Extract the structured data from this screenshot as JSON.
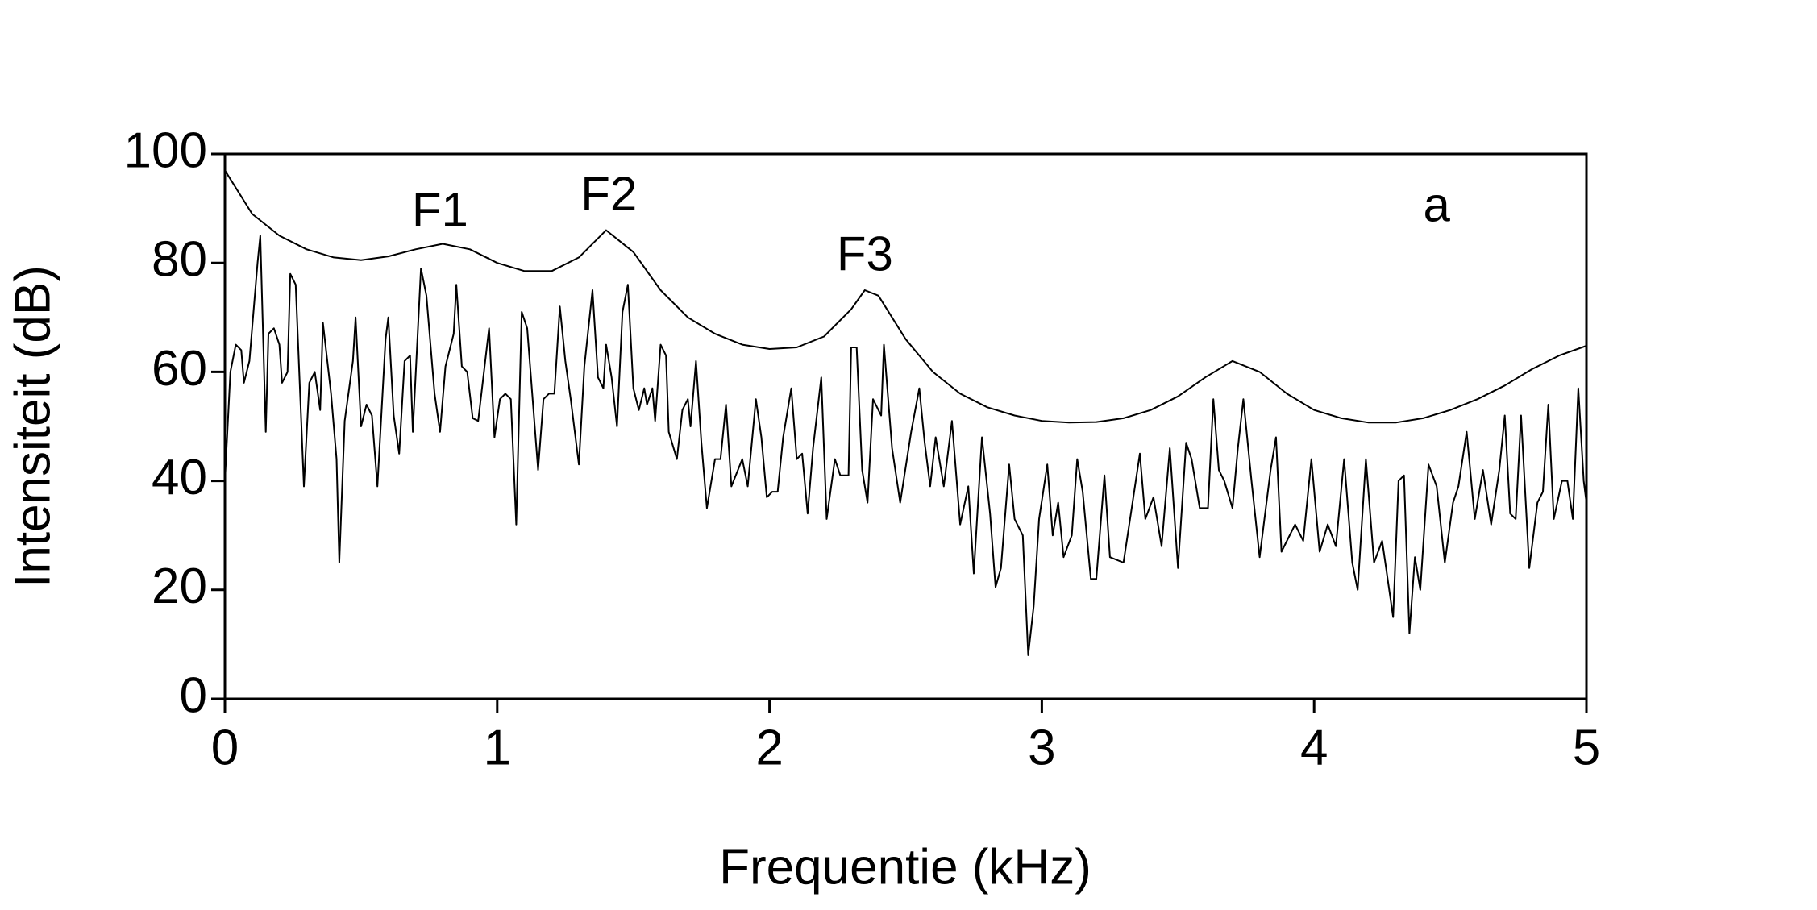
{
  "chart_data": {
    "type": "line",
    "xlabel": "Frequentie (kHz)",
    "ylabel": "Intensiteit (dB)",
    "xlim": [
      0,
      5
    ],
    "xticks": [
      0,
      1,
      2,
      3,
      4,
      5
    ],
    "ylim": [
      0,
      100
    ],
    "yticks": [
      0,
      20,
      40,
      60,
      80,
      100
    ],
    "grid": false,
    "annotations": [
      {
        "text": "F1",
        "x": 0.79,
        "y": 89
      },
      {
        "text": "F2",
        "x": 1.41,
        "y": 92
      },
      {
        "text": "F3",
        "x": 2.35,
        "y": 81
      },
      {
        "text": "a",
        "x": 4.45,
        "y": 90
      }
    ],
    "series": [
      {
        "color": "#000000",
        "x": [
          0,
          0.1,
          0.2,
          0.3,
          0.4,
          0.5,
          0.6,
          0.7,
          0.8,
          0.9,
          1.0,
          1.1,
          1.2,
          1.3,
          1.4,
          1.5,
          1.6,
          1.7,
          1.8,
          1.9,
          2.0,
          2.1,
          2.2,
          2.3,
          2.35,
          2.4,
          2.5,
          2.6,
          2.7,
          2.8,
          2.9,
          3.0,
          3.1,
          3.2,
          3.3,
          3.4,
          3.5,
          3.6,
          3.7,
          3.8,
          3.9,
          4.0,
          4.1,
          4.2,
          4.3,
          4.4,
          4.5,
          4.6,
          4.7,
          4.8,
          4.9,
          5.0
        ],
        "values": [
          97,
          89,
          85,
          82.5,
          81,
          80.5,
          81.2,
          82.5,
          83.5,
          82.5,
          80,
          78.5,
          78.5,
          81,
          86,
          82,
          75,
          70,
          67,
          65,
          64.2,
          64.5,
          66.5,
          71.5,
          75,
          74,
          66,
          60,
          56,
          53.5,
          52,
          51,
          50.7,
          50.8,
          51.5,
          53,
          55.5,
          59,
          62,
          60,
          56,
          53,
          51.5,
          50.7,
          50.7,
          51.5,
          53,
          55,
          57.5,
          60.5,
          63,
          64.8
        ]
      },
      {
        "color": "#000000",
        "x": [
          0,
          0.02,
          0.04,
          0.06,
          0.07,
          0.09,
          0.12,
          0.13,
          0.15,
          0.16,
          0.18,
          0.2,
          0.21,
          0.23,
          0.24,
          0.26,
          0.29,
          0.31,
          0.33,
          0.35,
          0.36,
          0.39,
          0.41,
          0.42,
          0.44,
          0.47,
          0.48,
          0.5,
          0.52,
          0.54,
          0.56,
          0.59,
          0.6,
          0.62,
          0.64,
          0.66,
          0.68,
          0.69,
          0.72,
          0.74,
          0.77,
          0.79,
          0.81,
          0.84,
          0.85,
          0.87,
          0.89,
          0.91,
          0.93,
          0.97,
          0.99,
          1.01,
          1.03,
          1.05,
          1.07,
          1.09,
          1.11,
          1.15,
          1.17,
          1.19,
          1.21,
          1.23,
          1.25,
          1.27,
          1.3,
          1.32,
          1.35,
          1.37,
          1.39,
          1.4,
          1.42,
          1.44,
          1.46,
          1.48,
          1.5,
          1.52,
          1.54,
          1.55,
          1.57,
          1.58,
          1.6,
          1.62,
          1.63,
          1.66,
          1.68,
          1.7,
          1.71,
          1.73,
          1.75,
          1.77,
          1.8,
          1.82,
          1.84,
          1.86,
          1.9,
          1.92,
          1.95,
          1.97,
          1.99,
          2.01,
          2.03,
          2.05,
          2.08,
          2.1,
          2.12,
          2.14,
          2.16,
          2.19,
          2.21,
          2.24,
          2.26,
          2.29,
          2.3,
          2.32,
          2.34,
          2.36,
          2.38,
          2.41,
          2.42,
          2.45,
          2.48,
          2.52,
          2.55,
          2.57,
          2.59,
          2.61,
          2.64,
          2.67,
          2.7,
          2.73,
          2.75,
          2.78,
          2.81,
          2.83,
          2.85,
          2.88,
          2.9,
          2.93,
          2.95,
          2.97,
          2.99,
          3.02,
          3.04,
          3.06,
          3.08,
          3.11,
          3.13,
          3.15,
          3.18,
          3.2,
          3.23,
          3.25,
          3.3,
          3.33,
          3.36,
          3.38,
          3.41,
          3.44,
          3.47,
          3.5,
          3.53,
          3.55,
          3.58,
          3.61,
          3.63,
          3.65,
          3.67,
          3.7,
          3.72,
          3.74,
          3.77,
          3.8,
          3.84,
          3.86,
          3.88,
          3.9,
          3.93,
          3.96,
          3.99,
          4.02,
          4.05,
          4.08,
          4.11,
          4.14,
          4.16,
          4.19,
          4.22,
          4.25,
          4.29,
          4.31,
          4.33,
          4.35,
          4.37,
          4.39,
          4.42,
          4.45,
          4.48,
          4.51,
          4.53,
          4.56,
          4.59,
          4.62,
          4.65,
          4.68,
          4.7,
          4.72,
          4.74,
          4.76,
          4.79,
          4.82,
          4.84,
          4.86,
          4.88,
          4.91,
          4.93,
          4.95,
          4.97,
          4.99,
          5.0
        ],
        "values": [
          40,
          60,
          65,
          64,
          58,
          62,
          80,
          85,
          49,
          67,
          68,
          65,
          58,
          60,
          78,
          76,
          39,
          58,
          60,
          53,
          69,
          56,
          44,
          25,
          51,
          62,
          70,
          50,
          54,
          52,
          39,
          66,
          70,
          52,
          45,
          62,
          63,
          49,
          79,
          74,
          56,
          49,
          61,
          67,
          76,
          61,
          60,
          51.5,
          51,
          68,
          48,
          55,
          56,
          55,
          32,
          71,
          68,
          42,
          55,
          56,
          56,
          72,
          62,
          55,
          43,
          61,
          75,
          59,
          57,
          65,
          59,
          50,
          71,
          76,
          57,
          53,
          57,
          54,
          57,
          51,
          65,
          63,
          49,
          44,
          53,
          55,
          50,
          62,
          47,
          35,
          44,
          44,
          54,
          39,
          44,
          39,
          55,
          48,
          37,
          38,
          38,
          48,
          57,
          44,
          45,
          34,
          46,
          59,
          33,
          44,
          41,
          41,
          64.5,
          64.5,
          42,
          36,
          55,
          52,
          65,
          46,
          36,
          49,
          57,
          47,
          39,
          48,
          39,
          51,
          32,
          39,
          23,
          48,
          34,
          20.5,
          24,
          43,
          33,
          30,
          8,
          17,
          33,
          43,
          30,
          36,
          26,
          30,
          44,
          38,
          22,
          22,
          41,
          26,
          25,
          35,
          45,
          33,
          37,
          28,
          46,
          24,
          47,
          44,
          35,
          35,
          55,
          42,
          40,
          35,
          46,
          55,
          40,
          26,
          42,
          48,
          27,
          29,
          32,
          29,
          44,
          27,
          32,
          28,
          44,
          25,
          20,
          44,
          25,
          29,
          15,
          40,
          41,
          12,
          26,
          20,
          43,
          39,
          25,
          36,
          39,
          49,
          33,
          42,
          32,
          42,
          52,
          34,
          33,
          52,
          24,
          36,
          38,
          54,
          33,
          40,
          40,
          33,
          57,
          40,
          36
        ]
      }
    ]
  }
}
